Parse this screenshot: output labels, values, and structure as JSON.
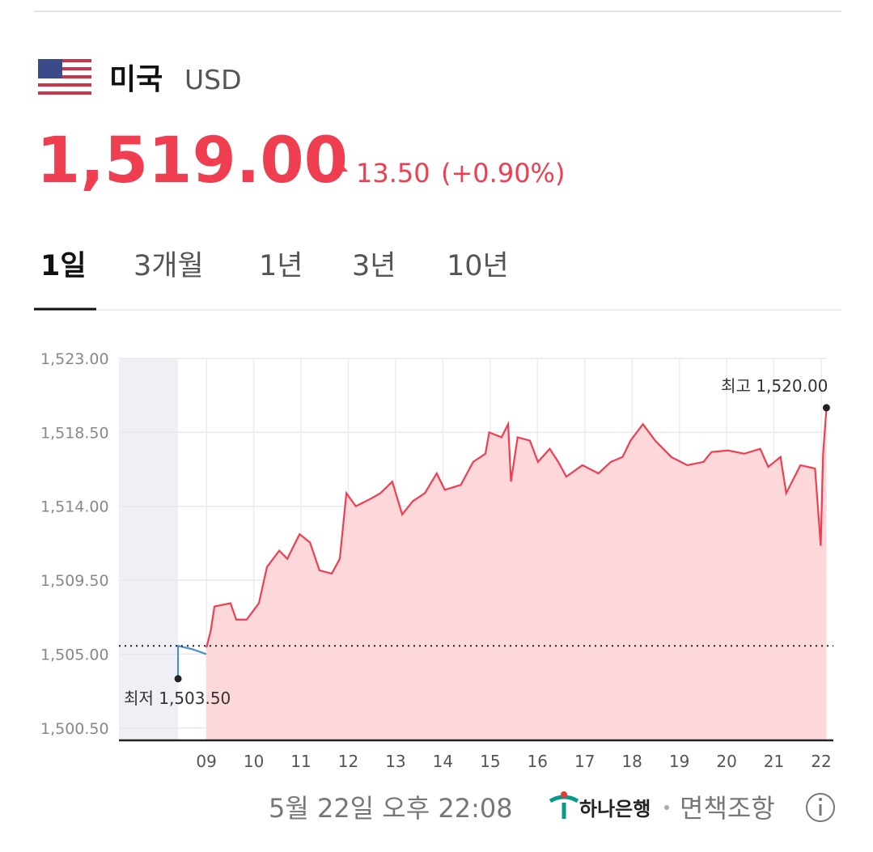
{
  "header": {
    "country": "미국",
    "currency": "USD",
    "price": "1,519.00",
    "change": "13.50",
    "change_pct": "(+0.90%)"
  },
  "tabs": {
    "items": [
      "1일",
      "3개월",
      "1년",
      "3년",
      "10년"
    ],
    "active": 0
  },
  "chart_data": {
    "type": "line",
    "xlim": [
      7.15,
      22.12
    ],
    "ylim": [
      1499.75,
      1523
    ],
    "xticks": [
      {
        "value": 9,
        "label": "09"
      },
      10,
      11,
      12,
      13,
      14,
      15,
      16,
      17,
      18,
      19,
      20,
      21,
      22
    ],
    "yticks": [
      {
        "value": 1500.5,
        "label": "1,500.50"
      },
      {
        "value": 1505,
        "label": "1,505.00"
      },
      {
        "value": 1509.5,
        "label": "1,509.50"
      },
      {
        "value": 1514,
        "label": "1,514.00"
      },
      {
        "value": 1518.5,
        "label": "1,518.50"
      },
      {
        "value": 1523,
        "label": "1,523.00"
      }
    ],
    "grid": true,
    "night_shade": [
      7.15,
      8.4
    ],
    "prev_close": 1505.5,
    "fill_color": "#fdd8db",
    "series": [
      {
        "color": "#4a8fc9",
        "x": [
          8.4,
          8.4,
          8.7,
          9.0
        ],
        "values": [
          1503.5,
          1505.5,
          1505.3,
          1505.0
        ]
      },
      {
        "color": "#ef3e4f",
        "x": [
          9.0,
          9.09,
          9.17,
          9.51,
          9.63,
          9.85,
          10.11,
          10.28,
          10.54,
          10.71,
          10.97,
          11.19,
          11.39,
          11.65,
          11.82,
          11.96,
          12.16,
          12.5,
          12.68,
          12.93,
          13.14,
          13.36,
          13.62,
          13.87,
          14.04,
          14.38,
          14.64,
          14.9,
          14.98,
          15.24,
          15.38,
          15.44,
          15.58,
          15.84,
          16.01,
          16.26,
          16.44,
          16.61,
          16.95,
          17.29,
          17.55,
          17.8,
          17.97,
          18.23,
          18.49,
          18.83,
          19.17,
          19.51,
          19.68,
          20.03,
          20.37,
          20.71,
          20.88,
          21.14,
          21.26,
          21.56,
          21.87,
          21.99,
          22.04,
          22.11
        ],
        "values": [
          1505.4,
          1506.4,
          1507.9,
          1508.1,
          1507.1,
          1507.1,
          1508.1,
          1510.3,
          1511.3,
          1510.8,
          1512.3,
          1511.8,
          1510.1,
          1509.9,
          1510.8,
          1514.8,
          1514.0,
          1514.5,
          1514.8,
          1515.5,
          1513.5,
          1514.3,
          1514.8,
          1516.0,
          1515.0,
          1515.3,
          1516.7,
          1517.2,
          1518.5,
          1518.2,
          1519.0,
          1515.5,
          1518.2,
          1518.0,
          1516.7,
          1517.5,
          1516.7,
          1515.8,
          1516.5,
          1516.0,
          1516.7,
          1517.0,
          1518.0,
          1519.0,
          1518.0,
          1517.0,
          1516.5,
          1516.7,
          1517.3,
          1517.4,
          1517.2,
          1517.5,
          1516.4,
          1517.0,
          1514.8,
          1516.5,
          1516.3,
          1511.6,
          1517.2,
          1519.9
        ]
      }
    ],
    "annotations": [
      {
        "text": "최고 1,520.00",
        "x": 22.11,
        "value": 1520
      },
      {
        "text": "최저 1,503.50",
        "x": 8.4,
        "value": 1503.5
      }
    ]
  },
  "footer": {
    "timestamp": "5월 22일 오후 22:08",
    "bank": "하나은행",
    "disclaimer": "면책조항"
  }
}
